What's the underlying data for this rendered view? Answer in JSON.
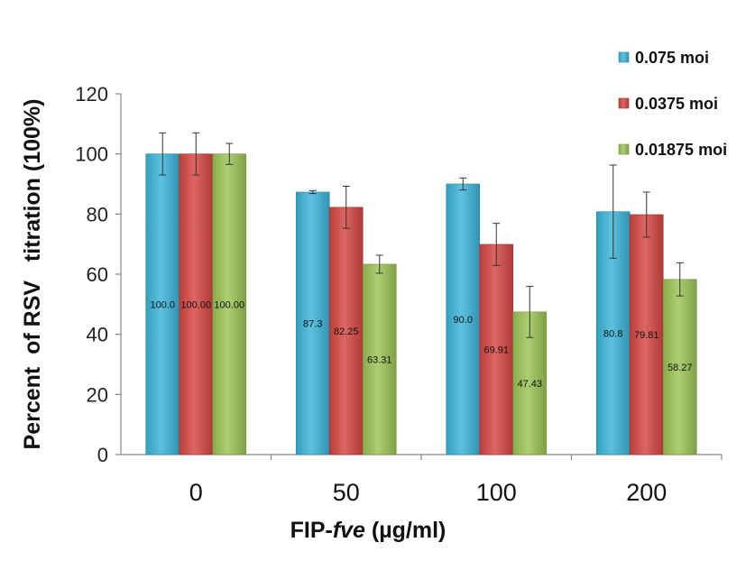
{
  "chart_data": {
    "type": "bar",
    "categories": [
      "0",
      "50",
      "100",
      "200"
    ],
    "series": [
      {
        "name": "0.075 moi",
        "values": [
          100.0,
          87.3,
          90.0,
          80.8
        ],
        "labels": [
          "100.0",
          "87.3",
          "90.0",
          "80.8"
        ],
        "errors": [
          7,
          0.5,
          2,
          15.5
        ],
        "color": "#3bb3d8"
      },
      {
        "name": "0.0375 moi",
        "values": [
          100.0,
          82.25,
          69.91,
          79.81
        ],
        "labels": [
          "100.00",
          "82.25",
          "69.91",
          "79.81"
        ],
        "errors": [
          7,
          7,
          7,
          7.5
        ],
        "color": "#d64541"
      },
      {
        "name": "0.01875 moi",
        "values": [
          100.0,
          63.31,
          47.43,
          58.27
        ],
        "labels": [
          "100.00",
          "63.31",
          "47.43",
          "58.27"
        ],
        "errors": [
          3.5,
          3,
          8.5,
          5.5
        ],
        "color": "#9bc354"
      }
    ],
    "yticks": [
      "0",
      "20",
      "40",
      "60",
      "80",
      "100",
      "120"
    ],
    "ylim": [
      0,
      120
    ],
    "ylabel": "Percent  of RSV   titration (100%)",
    "xlabel_prefix": "FIP-",
    "xlabel_italic": "fve",
    "xlabel_suffix": " (µg/ml)",
    "legend_position": "top-right",
    "grid": false
  }
}
